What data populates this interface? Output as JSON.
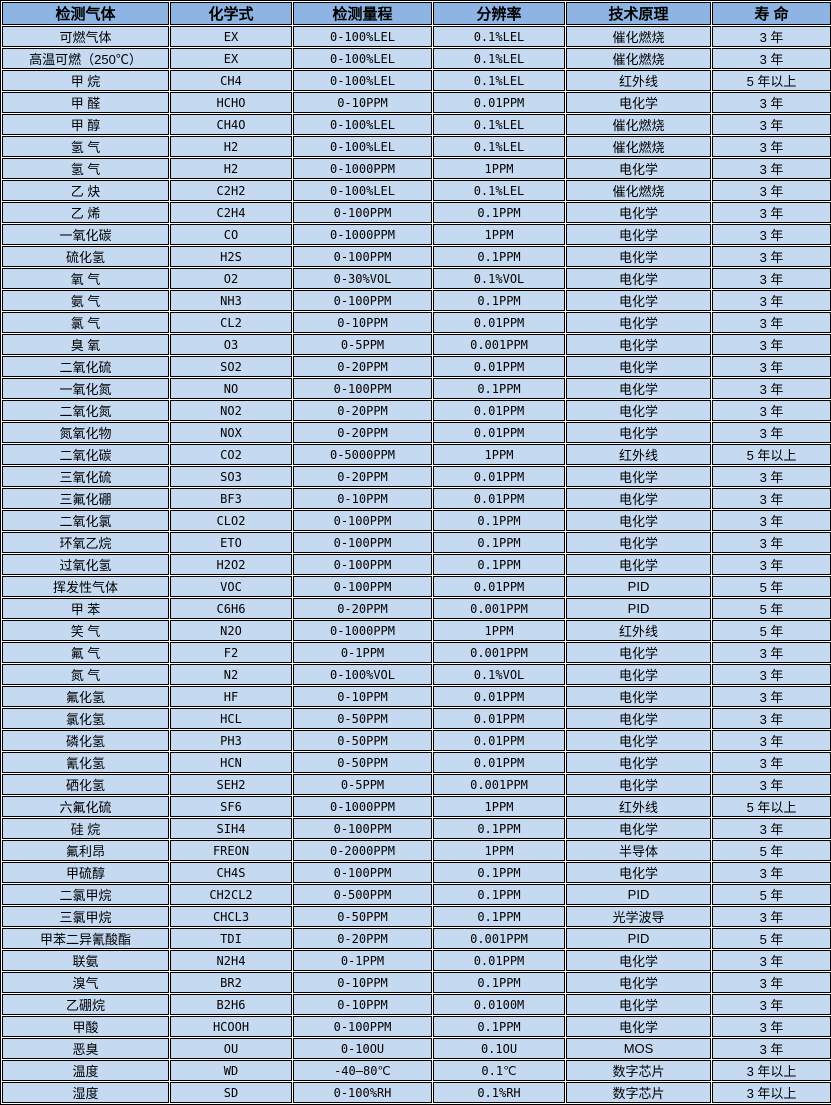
{
  "colors": {
    "header_bg": "#8db4e2",
    "row_bg": "#c5d9f1",
    "border": "#000000",
    "gap": "#ffffff",
    "text": "#000000"
  },
  "table": {
    "headers": [
      "检测气体",
      "化学式",
      "检测量程",
      "分辨率",
      "技术原理",
      "寿 命"
    ],
    "rows": [
      [
        "可燃气体",
        "EX",
        "0-100%LEL",
        "0.1%LEL",
        "催化燃烧",
        "3 年"
      ],
      [
        "高温可燃（250℃）",
        "EX",
        "0-100%LEL",
        "0.1%LEL",
        "催化燃烧",
        "3 年"
      ],
      [
        "甲 烷",
        "CH4",
        "0-100%LEL",
        "0.1%LEL",
        "红外线",
        "5 年以上"
      ],
      [
        "甲 醛",
        "HCHO",
        "0-10PPM",
        "0.01PPM",
        "电化学",
        "3 年"
      ],
      [
        "甲 醇",
        "CH4O",
        "0-100%LEL",
        "0.1%LEL",
        "催化燃烧",
        "3 年"
      ],
      [
        "氢 气",
        "H2",
        "0-100%LEL",
        "0.1%LEL",
        "催化燃烧",
        "3 年"
      ],
      [
        "氢 气",
        "H2",
        "0-1000PPM",
        "1PPM",
        "电化学",
        "3 年"
      ],
      [
        "乙 炔",
        "C2H2",
        "0-100%LEL",
        "0.1%LEL",
        "催化燃烧",
        "3 年"
      ],
      [
        "乙 烯",
        "C2H4",
        "0-100PPM",
        "0.1PPM",
        "电化学",
        "3 年"
      ],
      [
        "一氧化碳",
        "CO",
        "0-1000PPM",
        "1PPM",
        "电化学",
        "3 年"
      ],
      [
        "硫化氢",
        "H2S",
        "0-100PPM",
        "0.1PPM",
        "电化学",
        "3 年"
      ],
      [
        "氧 气",
        "O2",
        "0-30%VOL",
        "0.1%VOL",
        "电化学",
        "3 年"
      ],
      [
        "氨 气",
        "NH3",
        "0-100PPM",
        "0.1PPM",
        "电化学",
        "3 年"
      ],
      [
        "氯 气",
        "CL2",
        "0-10PPM",
        "0.01PPM",
        "电化学",
        "3 年"
      ],
      [
        "臭 氧",
        "O3",
        "0-5PPM",
        "0.001PPM",
        "电化学",
        "3 年"
      ],
      [
        "二氧化硫",
        "SO2",
        "0-20PPM",
        "0.01PPM",
        "电化学",
        "3 年"
      ],
      [
        "一氧化氮",
        "NO",
        "0-100PPM",
        "0.1PPM",
        "电化学",
        "3 年"
      ],
      [
        "二氧化氮",
        "NO2",
        "0-20PPM",
        "0.01PPM",
        "电化学",
        "3 年"
      ],
      [
        "氮氧化物",
        "NOX",
        "0-20PPM",
        "0.01PPM",
        "电化学",
        "3 年"
      ],
      [
        "二氧化碳",
        "CO2",
        "0-5000PPM",
        "1PPM",
        "红外线",
        "5 年以上"
      ],
      [
        "三氧化硫",
        "SO3",
        "0-20PPM",
        "0.01PPM",
        "电化学",
        "3 年"
      ],
      [
        "三氟化硼",
        "BF3",
        "0-10PPM",
        "0.01PPM",
        "电化学",
        "3 年"
      ],
      [
        "二氧化氯",
        "CLO2",
        "0-100PPM",
        "0.1PPM",
        "电化学",
        "3 年"
      ],
      [
        "环氧乙烷",
        "ETO",
        "0-100PPM",
        "0.1PPM",
        "电化学",
        "3 年"
      ],
      [
        "过氧化氢",
        "H2O2",
        "0-100PPM",
        "0.1PPM",
        "电化学",
        "3 年"
      ],
      [
        "挥发性气体",
        "VOC",
        "0-100PPM",
        "0.01PPM",
        "PID",
        "5 年"
      ],
      [
        "甲 苯",
        "C6H6",
        "0-20PPM",
        "0.001PPM",
        "PID",
        "5 年"
      ],
      [
        "笑 气",
        "N2O",
        "0-1000PPM",
        "1PPM",
        "红外线",
        "5 年"
      ],
      [
        "氟 气",
        "F2",
        "0-1PPM",
        "0.001PPM",
        "电化学",
        "3 年"
      ],
      [
        "氮 气",
        "N2",
        "0-100%VOL",
        "0.1%VOL",
        "电化学",
        "3 年"
      ],
      [
        "氟化氢",
        "HF",
        "0-10PPM",
        "0.01PPM",
        "电化学",
        "3 年"
      ],
      [
        "氯化氢",
        "HCL",
        "0-50PPM",
        "0.01PPM",
        "电化学",
        "3 年"
      ],
      [
        "磷化氢",
        "PH3",
        "0-50PPM",
        "0.01PPM",
        "电化学",
        "3 年"
      ],
      [
        "氰化氢",
        "HCN",
        "0-50PPM",
        "0.01PPM",
        "电化学",
        "3 年"
      ],
      [
        "硒化氢",
        "SEH2",
        "0-5PPM",
        "0.001PPM",
        "电化学",
        "3 年"
      ],
      [
        "六氟化硫",
        "SF6",
        "0-1000PPM",
        "1PPM",
        "红外线",
        "5 年以上"
      ],
      [
        "硅 烷",
        "SIH4",
        "0-100PPM",
        "0.1PPM",
        "电化学",
        "3 年"
      ],
      [
        "氟利昂",
        "FREON",
        "0-2000PPM",
        "1PPM",
        "半导体",
        "5 年"
      ],
      [
        "甲硫醇",
        "CH4S",
        "0-100PPM",
        "0.1PPM",
        "电化学",
        "3 年"
      ],
      [
        "二氯甲烷",
        "CH2CL2",
        "0-500PPM",
        "0.1PPM",
        "PID",
        "5 年"
      ],
      [
        "三氯甲烷",
        "CHCL3",
        "0-50PPM",
        "0.1PPM",
        "光学波导",
        "3 年"
      ],
      [
        "甲苯二异氰酸酯",
        "TDI",
        "0-20PPM",
        "0.001PPM",
        "PID",
        "5 年"
      ],
      [
        "联氨",
        "N2H4",
        "0-1PPM",
        "0.01PPM",
        "电化学",
        "3 年"
      ],
      [
        "溴气",
        "BR2",
        "0-10PPM",
        "0.1PPM",
        "电化学",
        "3 年"
      ],
      [
        "乙硼烷",
        "B2H6",
        "0-10PPM",
        "0.0100M",
        "电化学",
        "3 年"
      ],
      [
        "甲酸",
        "HCOOH",
        "0-100PPM",
        "0.1PPM",
        "电化学",
        "3 年"
      ],
      [
        "恶臭",
        "OU",
        "0-10OU",
        "0.1OU",
        "MOS",
        "3 年"
      ],
      [
        "温度",
        "WD",
        "-40—80℃",
        "0.1℃",
        "数字芯片",
        "3 年以上"
      ],
      [
        "湿度",
        "SD",
        "0-100%RH",
        "0.1%RH",
        "数字芯片",
        "3 年以上"
      ]
    ]
  }
}
